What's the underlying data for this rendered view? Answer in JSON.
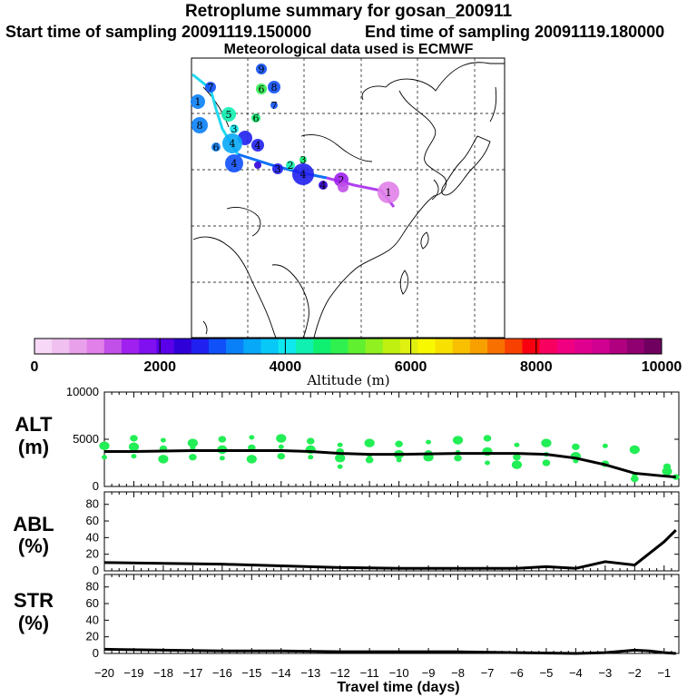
{
  "header": {
    "title": "Retroplume summary for gosan_200911",
    "start_label": "Start time of sampling 20091119.150000",
    "end_label": "End time of sampling 20091119.180000",
    "met_label": "Meteorological data used is ECMWF"
  },
  "colors": {
    "scale": [
      "#f7d8f7",
      "#efc0f0",
      "#e8a0ea",
      "#e080e8",
      "#c050e8",
      "#a020f0",
      "#8010f0",
      "#5a00e8",
      "#3000d8",
      "#2020f0",
      "#1050f8",
      "#0a80f8",
      "#08a8f8",
      "#08c8f8",
      "#10e8f0",
      "#10f0b0",
      "#10f070",
      "#30f050",
      "#60f030",
      "#90f020",
      "#c0f010",
      "#e0f010",
      "#f8f800",
      "#f8e000",
      "#f8c000",
      "#f8a000",
      "#f87000",
      "#f84000",
      "#f80010",
      "#f80060",
      "#f00080",
      "#e00090",
      "#d00090",
      "#b00080",
      "#900070",
      "#700060"
    ],
    "marker_green": "#22ee55",
    "line": "#000000"
  },
  "colorbar": {
    "tick_labels": [
      "0",
      "2000",
      "4000",
      "6000",
      "8000",
      "10000"
    ],
    "label": "Altitude (m)"
  },
  "map": {
    "trajectory_labels": [
      "1",
      "2",
      "3",
      "4",
      "5",
      "6",
      "7",
      "8",
      "9"
    ]
  },
  "chart_data": [
    {
      "type": "line",
      "name": "ALT",
      "title": "ALT",
      "ylabel": "(m)",
      "ylim": [
        0,
        10000
      ],
      "yticks": [
        0,
        5000,
        10000
      ],
      "ytick_labels": [
        "0",
        "5000",
        "10000"
      ],
      "xlim": [
        -20,
        -0.5
      ],
      "x": [
        -20,
        -19,
        -18,
        -17,
        -16,
        -15,
        -14,
        -13,
        -12,
        -11,
        -10,
        -9,
        -8,
        -7,
        -6,
        -5,
        -4,
        -3,
        -2,
        -1,
        -0.6
      ],
      "values": [
        3700,
        3700,
        3750,
        3800,
        3800,
        3800,
        3800,
        3700,
        3500,
        3400,
        3400,
        3450,
        3500,
        3500,
        3500,
        3400,
        3000,
        2300,
        1400,
        1100,
        1000
      ],
      "cluster_points": [
        {
          "x": -20,
          "y": [
            4300,
            3100
          ]
        },
        {
          "x": -19,
          "y": [
            5100,
            4200,
            3200
          ]
        },
        {
          "x": -18,
          "y": [
            4900,
            4000,
            2900
          ]
        },
        {
          "x": -17,
          "y": [
            4600,
            4100,
            3100
          ]
        },
        {
          "x": -16,
          "y": [
            5000,
            3900,
            3000
          ]
        },
        {
          "x": -15,
          "y": [
            5200,
            4100,
            2900
          ]
        },
        {
          "x": -14,
          "y": [
            5100,
            4200,
            3200
          ]
        },
        {
          "x": -13,
          "y": [
            4800,
            3900,
            3100
          ]
        },
        {
          "x": -12,
          "y": [
            4400,
            3700,
            3000,
            2100
          ]
        },
        {
          "x": -11,
          "y": [
            4600,
            3300,
            2800
          ]
        },
        {
          "x": -10,
          "y": [
            4500,
            3400,
            2800
          ]
        },
        {
          "x": -9,
          "y": [
            4700,
            3500,
            3100
          ]
        },
        {
          "x": -8,
          "y": [
            4900,
            3600,
            3000
          ]
        },
        {
          "x": -7,
          "y": [
            5100,
            3700,
            2500
          ]
        },
        {
          "x": -6,
          "y": [
            4400,
            3100,
            2300
          ]
        },
        {
          "x": -5,
          "y": [
            4600,
            3400,
            2500
          ]
        },
        {
          "x": -4,
          "y": [
            4200,
            3200,
            2700
          ]
        },
        {
          "x": -3,
          "y": [
            4300,
            2400
          ]
        },
        {
          "x": -2,
          "y": [
            3900,
            1200,
            800
          ]
        },
        {
          "x": -0.9,
          "y": [
            2100,
            1600
          ]
        },
        {
          "x": -0.6,
          "y": [
            1000
          ]
        }
      ]
    },
    {
      "type": "line",
      "name": "ABL",
      "title": "ABL",
      "ylabel": "(%)",
      "ylim": [
        0,
        95
      ],
      "yticks": [
        0,
        20,
        40,
        60,
        80
      ],
      "ytick_labels": [
        "0",
        "20",
        "40",
        "60",
        "80"
      ],
      "xlim": [
        -20,
        -0.5
      ],
      "x": [
        -20,
        -18,
        -16,
        -14,
        -12,
        -10,
        -8,
        -6,
        -5,
        -4,
        -3,
        -2,
        -1,
        -0.6
      ],
      "values": [
        10,
        9,
        8,
        6,
        4,
        3,
        3,
        3,
        5,
        3,
        11,
        7,
        35,
        49
      ]
    },
    {
      "type": "line",
      "name": "STR",
      "title": "STR",
      "ylabel": "(%)",
      "ylim": [
        0,
        95
      ],
      "yticks": [
        0,
        20,
        40,
        60,
        80
      ],
      "ytick_labels": [
        "0",
        "20",
        "40",
        "60",
        "80"
      ],
      "xlim": [
        -20,
        -0.5
      ],
      "x": [
        -20,
        -18,
        -16,
        -14,
        -12,
        -10,
        -8,
        -6,
        -4,
        -3,
        -2,
        -1.5,
        -1,
        -0.6
      ],
      "values": [
        5,
        4,
        3,
        3,
        2,
        2,
        2,
        1,
        0,
        1,
        4,
        3,
        1,
        0
      ]
    }
  ],
  "xaxis": {
    "ticks": [
      -20,
      -19,
      -18,
      -17,
      -16,
      -15,
      -14,
      -13,
      -12,
      -11,
      -10,
      -9,
      -8,
      -7,
      -6,
      -5,
      -4,
      -3,
      -2,
      -1
    ],
    "tick_labels": [
      "−20",
      "−19",
      "−18",
      "−17",
      "−16",
      "−15",
      "−14",
      "−13",
      "−12",
      "−11",
      "−10",
      "−9",
      "−8",
      "−7",
      "−6",
      "−5",
      "−4",
      "−3",
      "−2",
      "−1"
    ],
    "label": "Travel time (days)"
  }
}
